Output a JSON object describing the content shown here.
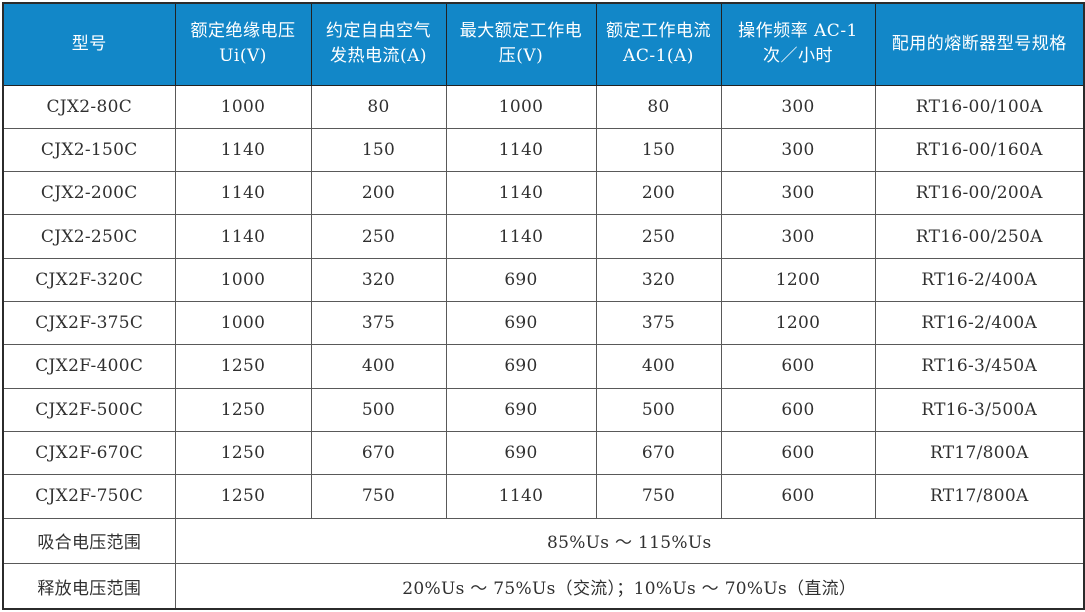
{
  "colors": {
    "header_bg": "#1287c8",
    "header_text": "#ffffff",
    "body_text": "#303030",
    "grid_line": "#595959",
    "outer_border": "#2b2b2b"
  },
  "table": {
    "columns": [
      {
        "label": "型号"
      },
      {
        "label": "额定绝缘电压 Ui(V)"
      },
      {
        "label": "约定自由空气发热电流(A)"
      },
      {
        "label": "最大额定工作电压(V)"
      },
      {
        "label": "额定工作电流 AC-1(A)"
      },
      {
        "label": "操作频率 AC-1 次／小时"
      },
      {
        "label": "配用的熔断器型号规格"
      }
    ],
    "rows": [
      [
        "CJX2-80C",
        "1000",
        "80",
        "1000",
        "80",
        "300",
        "RT16-00/100A"
      ],
      [
        "CJX2-150C",
        "1140",
        "150",
        "1140",
        "150",
        "300",
        "RT16-00/160A"
      ],
      [
        "CJX2-200C",
        "1140",
        "200",
        "1140",
        "200",
        "300",
        "RT16-00/200A"
      ],
      [
        "CJX2-250C",
        "1140",
        "250",
        "1140",
        "250",
        "300",
        "RT16-00/250A"
      ],
      [
        "CJX2F-320C",
        "1000",
        "320",
        "690",
        "320",
        "1200",
        "RT16-2/400A"
      ],
      [
        "CJX2F-375C",
        "1000",
        "375",
        "690",
        "375",
        "1200",
        "RT16-2/400A"
      ],
      [
        "CJX2F-400C",
        "1250",
        "400",
        "690",
        "400",
        "600",
        "RT16-3/450A"
      ],
      [
        "CJX2F-500C",
        "1250",
        "500",
        "690",
        "500",
        "600",
        "RT16-3/500A"
      ],
      [
        "CJX2F-670C",
        "1250",
        "670",
        "690",
        "670",
        "600",
        "RT17/800A"
      ],
      [
        "CJX2F-750C",
        "1250",
        "750",
        "1140",
        "750",
        "600",
        "RT17/800A"
      ]
    ],
    "footer": [
      {
        "label": "吸合电压范围",
        "value": "85%Us ～ 115%Us"
      },
      {
        "label": "释放电压范围",
        "value": "20%Us ～ 75%Us（交流）；10%Us ～ 70%Us（直流）"
      }
    ]
  }
}
